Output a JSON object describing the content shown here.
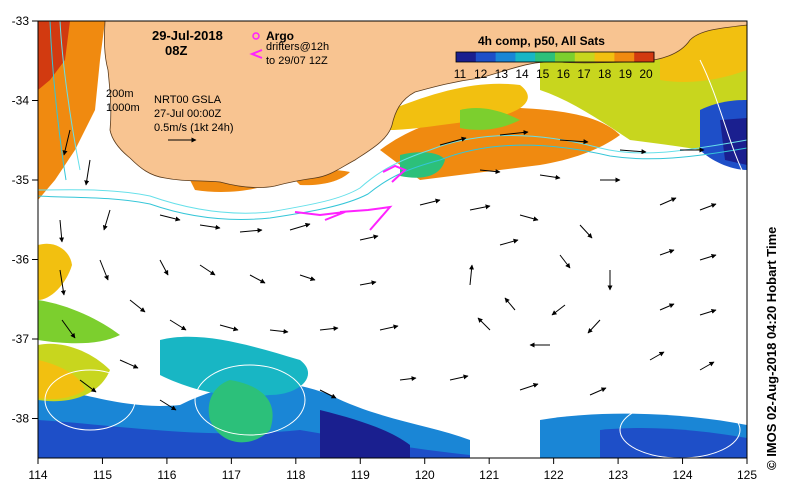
{
  "header": {
    "date": "29-Jul-2018",
    "hour": "08Z"
  },
  "legend_argo": {
    "argo_label": "Argo",
    "drifters_label": "drifters@12h",
    "drifters_range": "to 29/07 12Z"
  },
  "colorbar": {
    "title": "4h comp, p50, All Sats",
    "ticks": [
      "11",
      "12",
      "13",
      "14",
      "15",
      "16",
      "17",
      "18",
      "19",
      "20"
    ],
    "colors": [
      "#1a1f8f",
      "#1e4fc8",
      "#1a86d6",
      "#18b6c4",
      "#2cc07a",
      "#7ccf2e",
      "#c8d61e",
      "#f2c010",
      "#f08a10",
      "#d23a10"
    ]
  },
  "contours_legend": {
    "isobath_1": "200m",
    "isobath_2": "1000m",
    "product": "NRT00 GSLA",
    "product_time": "27-Jul 00:00Z",
    "scale_label": "0.5m/s (1kt 24h)"
  },
  "axes": {
    "x_ticks": [
      "114",
      "115",
      "116",
      "117",
      "118",
      "119",
      "120",
      "121",
      "122",
      "123",
      "124",
      "125"
    ],
    "y_ticks": [
      "-33",
      "-34",
      "-35",
      "-36",
      "-37",
      "-38"
    ]
  },
  "credit": "© IMOS 02-Aug-2018 04:20 Hobart Time",
  "colors": {
    "land": "#f8c491",
    "coast": "#5a3a1a",
    "isobath_200": "#66e0ea",
    "isobath_1000": "#35c6d8",
    "drifter": "#ff22ff"
  }
}
